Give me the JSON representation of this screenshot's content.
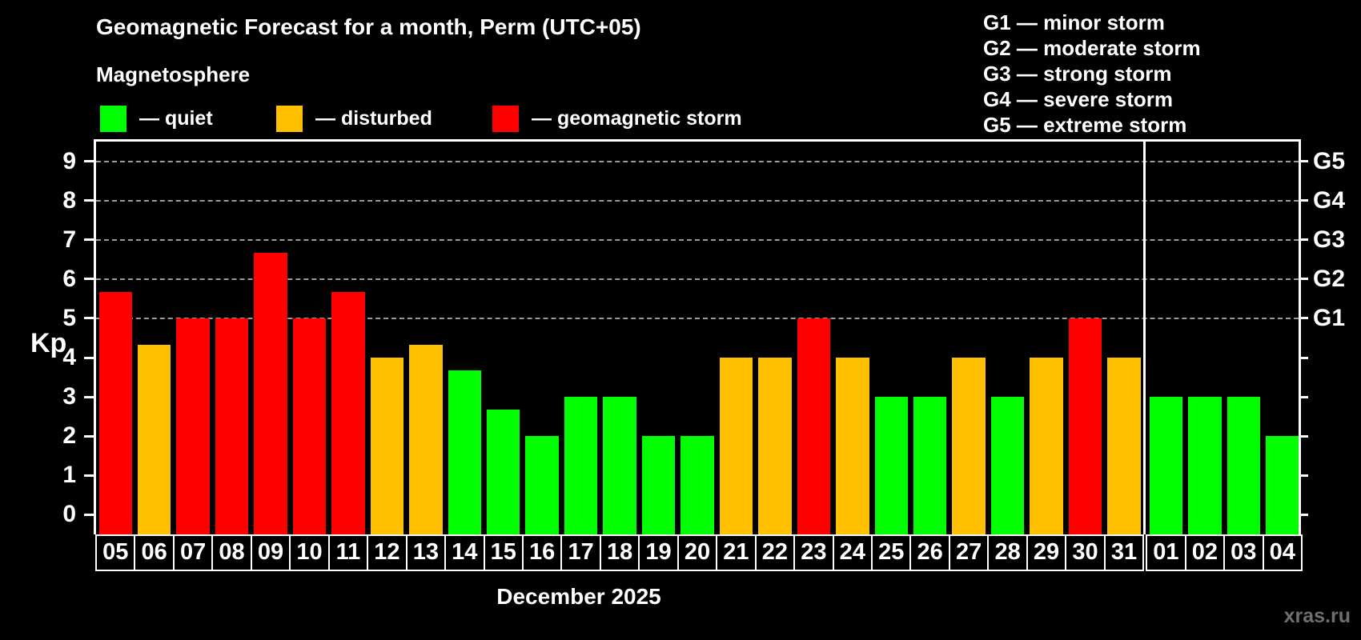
{
  "header": {
    "title": "Geomagnetic Forecast for a month, Perm (UTC+05)",
    "subtitle": "Magnetosphere"
  },
  "legend": [
    {
      "key": "quiet",
      "label": "— quiet"
    },
    {
      "key": "disturbed",
      "label": "— disturbed"
    },
    {
      "key": "storm",
      "label": "— geomagnetic storm"
    }
  ],
  "g_legend": [
    "G1 — minor storm",
    "G2 — moderate storm",
    "G3 — strong storm",
    "G4 — severe storm",
    "G5 — extreme storm"
  ],
  "colors": {
    "quiet": "#00ff00",
    "disturbed": "#ffc000",
    "storm": "#ff0000",
    "axis": "#ffffff",
    "grid": "#9a9a9a",
    "watermark": "#6f6f6f"
  },
  "watermark": "xras.ru",
  "chart_data": {
    "type": "bar",
    "title": "Geomagnetic Forecast for a month, Perm (UTC+05)",
    "xlabel": "December 2025",
    "ylabel": "Kp",
    "ylim": [
      0,
      9
    ],
    "y_ticks": [
      0,
      1,
      2,
      3,
      4,
      5,
      6,
      7,
      8,
      9
    ],
    "gridlines_at": [
      5,
      6,
      7,
      8,
      9
    ],
    "grid": "dashed horizontal at storm levels only",
    "legend_position": "top-left",
    "right_axis_ticks": [
      {
        "value": 5,
        "label": "G1"
      },
      {
        "value": 6,
        "label": "G2"
      },
      {
        "value": 7,
        "label": "G3"
      },
      {
        "value": 8,
        "label": "G4"
      },
      {
        "value": 9,
        "label": "G5"
      }
    ],
    "categories": [
      "05",
      "06",
      "07",
      "08",
      "09",
      "10",
      "11",
      "12",
      "13",
      "14",
      "15",
      "16",
      "17",
      "18",
      "19",
      "20",
      "21",
      "22",
      "23",
      "24",
      "25",
      "26",
      "27",
      "28",
      "29",
      "30",
      "31",
      "01",
      "02",
      "03",
      "04"
    ],
    "series": [
      {
        "name": "Kp forecast",
        "values": [
          5.67,
          4.33,
          5,
          5,
          6.67,
          5,
          5.67,
          4,
          4.33,
          3.67,
          2.67,
          2,
          3,
          3,
          2,
          2,
          4,
          4,
          5,
          4,
          3,
          3,
          4,
          3,
          4,
          5,
          4,
          3,
          3,
          3,
          2
        ]
      }
    ],
    "point_levels": [
      "storm",
      "disturbed",
      "storm",
      "storm",
      "storm",
      "storm",
      "storm",
      "disturbed",
      "disturbed",
      "quiet",
      "quiet",
      "quiet",
      "quiet",
      "quiet",
      "quiet",
      "quiet",
      "disturbed",
      "disturbed",
      "storm",
      "disturbed",
      "quiet",
      "quiet",
      "disturbed",
      "quiet",
      "disturbed",
      "storm",
      "disturbed",
      "quiet",
      "quiet",
      "quiet",
      "quiet"
    ],
    "month_break_after_index": 26
  }
}
